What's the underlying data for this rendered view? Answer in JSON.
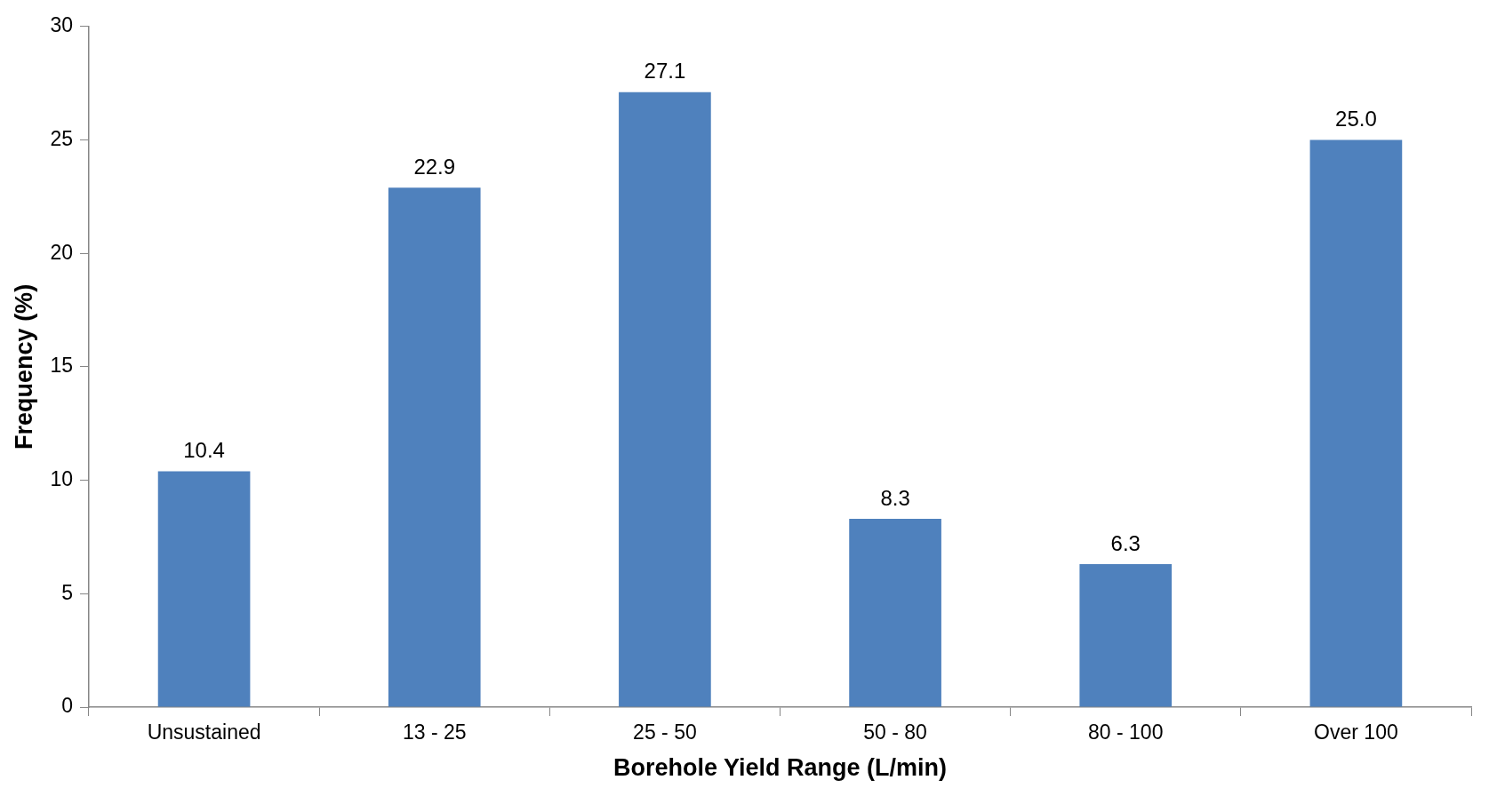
{
  "chart_data": {
    "type": "bar",
    "xlabel": "Borehole Yield Range (L/min)",
    "ylabel": "Frequency (%)",
    "categories": [
      "Unsustained",
      "13 - 25",
      "25 - 50",
      "50 - 80",
      "80 - 100",
      "Over 100"
    ],
    "values": [
      10.4,
      22.9,
      27.1,
      8.3,
      6.3,
      25.0
    ],
    "value_labels": [
      "10.4",
      "22.9",
      "27.1",
      "8.3",
      "6.3",
      "25.0"
    ],
    "color": "#4f81bd",
    "ylim": [
      0,
      30
    ],
    "yticks": [
      0,
      5,
      10,
      15,
      20,
      25,
      30
    ],
    "grid": false,
    "legend": false
  }
}
